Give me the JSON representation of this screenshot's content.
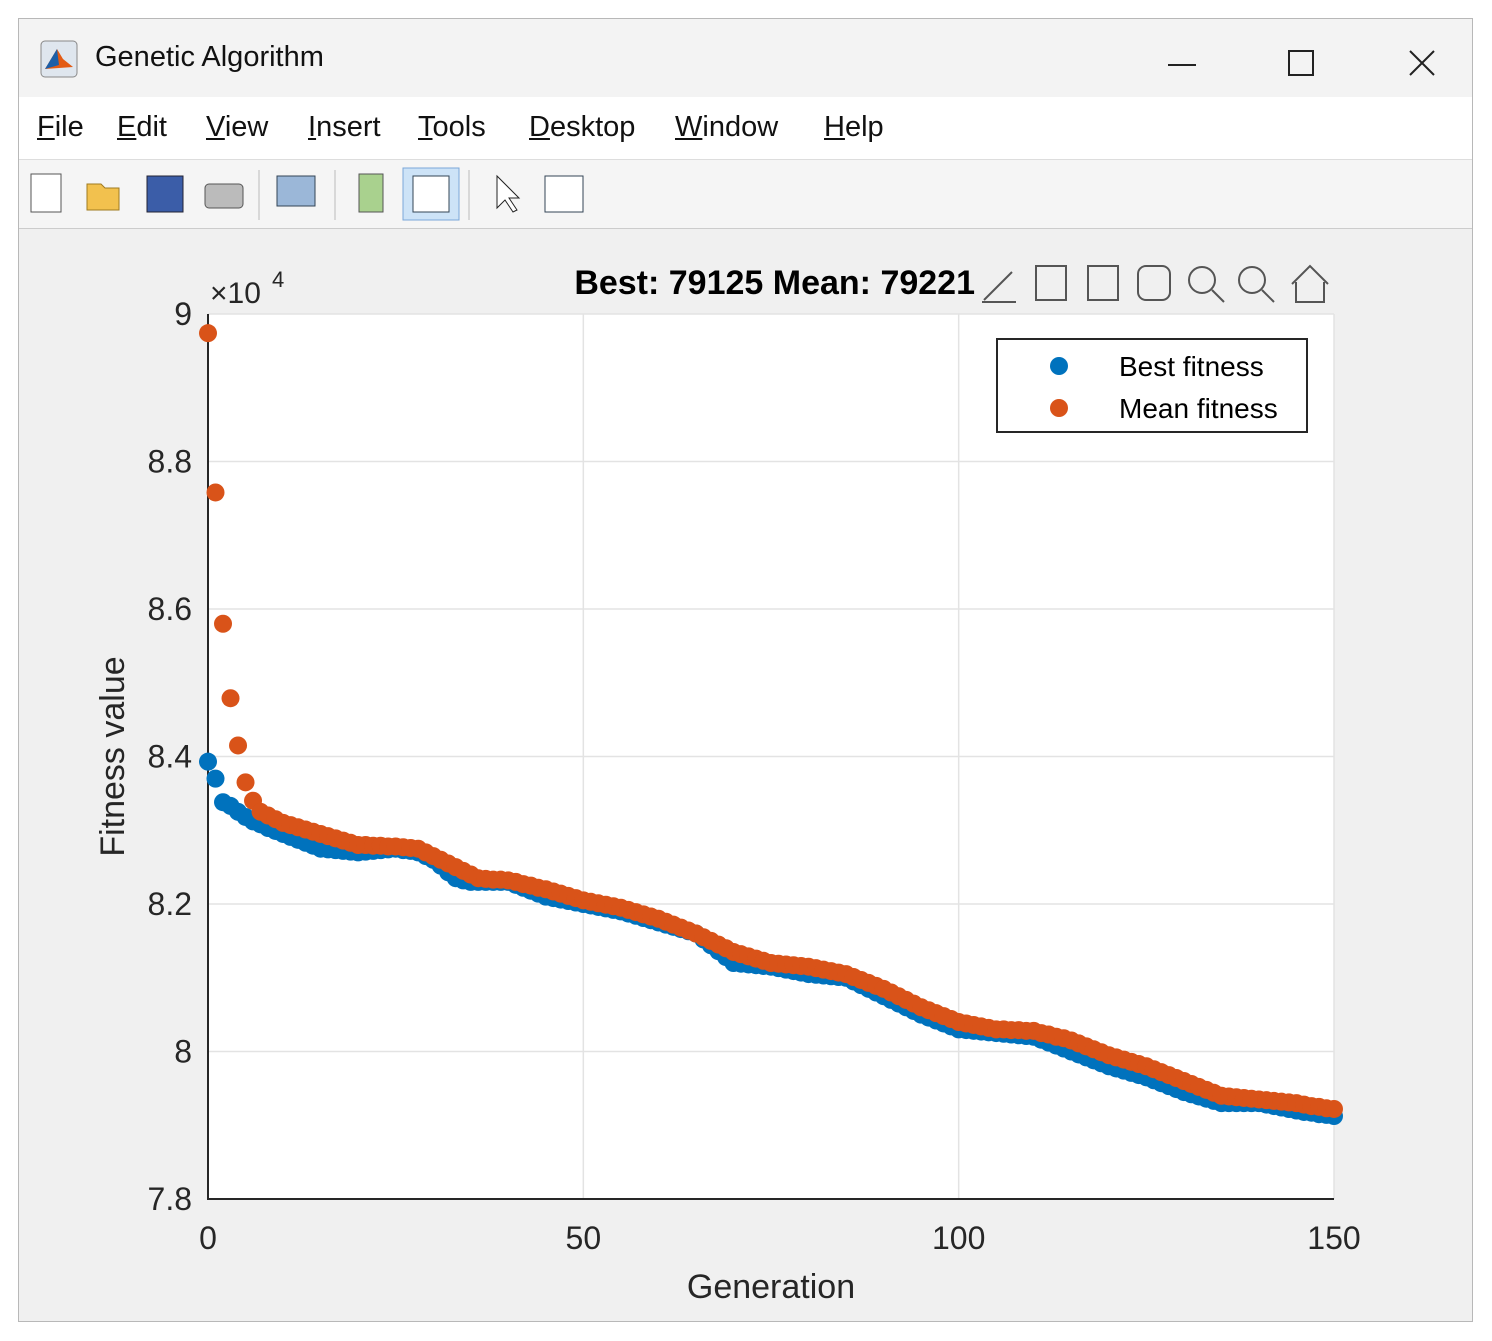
{
  "window": {
    "title": "Genetic Algorithm",
    "menu": [
      "File",
      "Edit",
      "View",
      "Insert",
      "Tools",
      "Desktop",
      "Window",
      "Help"
    ]
  },
  "chart_data": {
    "type": "scatter",
    "title": "Best: 79125 Mean: 79221",
    "x_label": "Generation",
    "y_label": "Fitness value",
    "y_exponent": {
      "base": "×10",
      "power": "4"
    },
    "xlim": [
      0,
      150
    ],
    "xticks": [
      0,
      50,
      100,
      150
    ],
    "ylim": [
      78000,
      90000
    ],
    "yticks": [
      {
        "value": 78000,
        "label": "7.8"
      },
      {
        "value": 80000,
        "label": "8"
      },
      {
        "value": 82000,
        "label": "8.2"
      },
      {
        "value": 84000,
        "label": "8.4"
      },
      {
        "value": 86000,
        "label": "8.6"
      },
      {
        "value": 88000,
        "label": "8.8"
      },
      {
        "value": 90000,
        "label": "9"
      }
    ],
    "grid": true,
    "legend": "northeast",
    "x": [
      0,
      1,
      2,
      3,
      4,
      5,
      6,
      7,
      8,
      9,
      10,
      11,
      12,
      13,
      14,
      15,
      16,
      17,
      18,
      19,
      20,
      21,
      22,
      23,
      24,
      25,
      26,
      27,
      28,
      29,
      30,
      31,
      32,
      33,
      34,
      35,
      36,
      37,
      38,
      39,
      40,
      41,
      42,
      43,
      44,
      45,
      46,
      47,
      48,
      49,
      50,
      51,
      52,
      53,
      54,
      55,
      56,
      57,
      58,
      59,
      60,
      61,
      62,
      63,
      64,
      65,
      66,
      67,
      68,
      69,
      70,
      71,
      72,
      73,
      74,
      75,
      76,
      77,
      78,
      79,
      80,
      81,
      82,
      83,
      84,
      85,
      86,
      87,
      88,
      89,
      90,
      91,
      92,
      93,
      94,
      95,
      96,
      97,
      98,
      99,
      100,
      101,
      102,
      103,
      104,
      105,
      106,
      107,
      108,
      109,
      110,
      111,
      112,
      113,
      114,
      115,
      116,
      117,
      118,
      119,
      120,
      121,
      122,
      123,
      124,
      125,
      126,
      127,
      128,
      129,
      130,
      131,
      132,
      133,
      134,
      135,
      136,
      137,
      138,
      139,
      140,
      141,
      142,
      143,
      144,
      145,
      146,
      147,
      148,
      149,
      150
    ],
    "series": [
      {
        "name": "Best fitness",
        "color": "#0072bd",
        "values": [
          83930,
          83700,
          83380,
          83330,
          83250,
          83180,
          83120,
          83080,
          83030,
          82990,
          82950,
          82910,
          82870,
          82830,
          82790,
          82750,
          82740,
          82730,
          82720,
          82710,
          82700,
          82710,
          82720,
          82730,
          82740,
          82750,
          82730,
          82720,
          82700,
          82650,
          82600,
          82520,
          82430,
          82350,
          82320,
          82300,
          82300,
          82300,
          82300,
          82300,
          82300,
          82260,
          82220,
          82180,
          82140,
          82100,
          82080,
          82060,
          82040,
          82020,
          82000,
          81980,
          81960,
          81940,
          81920,
          81900,
          81870,
          81840,
          81810,
          81780,
          81750,
          81720,
          81690,
          81660,
          81630,
          81600,
          81520,
          81440,
          81360,
          81280,
          81200,
          81190,
          81180,
          81170,
          81160,
          81150,
          81130,
          81110,
          81090,
          81070,
          81050,
          81040,
          81030,
          81020,
          81010,
          81000,
          80950,
          80900,
          80850,
          80800,
          80750,
          80700,
          80650,
          80600,
          80550,
          80500,
          80460,
          80420,
          80380,
          80340,
          80300,
          80290,
          80280,
          80270,
          80260,
          80250,
          80240,
          80230,
          80220,
          80210,
          80200,
          80160,
          80120,
          80080,
          80040,
          80000,
          79960,
          79920,
          79880,
          79840,
          79800,
          79770,
          79740,
          79710,
          79680,
          79650,
          79610,
          79570,
          79530,
          79490,
          79450,
          79420,
          79390,
          79360,
          79330,
          79300,
          79300,
          79300,
          79300,
          79300,
          79300,
          79280,
          79260,
          79240,
          79220,
          79200,
          79180,
          79170,
          79150,
          79140,
          79125
        ]
      },
      {
        "name": "Mean fitness",
        "color": "#d95319",
        "values": [
          89740,
          87580,
          85800,
          84790,
          84150,
          83650,
          83400,
          83250,
          83200,
          83150,
          83100,
          83070,
          83040,
          83010,
          82980,
          82950,
          82920,
          82890,
          82860,
          82830,
          82800,
          82800,
          82790,
          82790,
          82780,
          82780,
          82770,
          82760,
          82750,
          82700,
          82650,
          82600,
          82550,
          82500,
          82450,
          82400,
          82350,
          82340,
          82330,
          82330,
          82320,
          82300,
          82270,
          82250,
          82220,
          82200,
          82170,
          82140,
          82110,
          82080,
          82050,
          82030,
          82010,
          81990,
          81970,
          81950,
          81920,
          81890,
          81860,
          81830,
          81800,
          81760,
          81720,
          81680,
          81640,
          81600,
          81550,
          81500,
          81450,
          81400,
          81350,
          81320,
          81290,
          81260,
          81230,
          81200,
          81190,
          81180,
          81170,
          81160,
          81150,
          81130,
          81110,
          81090,
          81070,
          81050,
          81010,
          80970,
          80930,
          80890,
          80850,
          80800,
          80750,
          80700,
          80650,
          80600,
          80560,
          80520,
          80480,
          80440,
          80400,
          80380,
          80360,
          80340,
          80320,
          80300,
          80300,
          80290,
          80290,
          80280,
          80280,
          80250,
          80230,
          80200,
          80180,
          80150,
          80110,
          80070,
          80030,
          79990,
          79950,
          79920,
          79890,
          79860,
          79830,
          79800,
          79760,
          79720,
          79680,
          79640,
          79600,
          79560,
          79520,
          79480,
          79440,
          79400,
          79390,
          79380,
          79370,
          79360,
          79350,
          79340,
          79330,
          79320,
          79310,
          79300,
          79280,
          79260,
          79250,
          79230,
          79221
        ]
      }
    ]
  }
}
